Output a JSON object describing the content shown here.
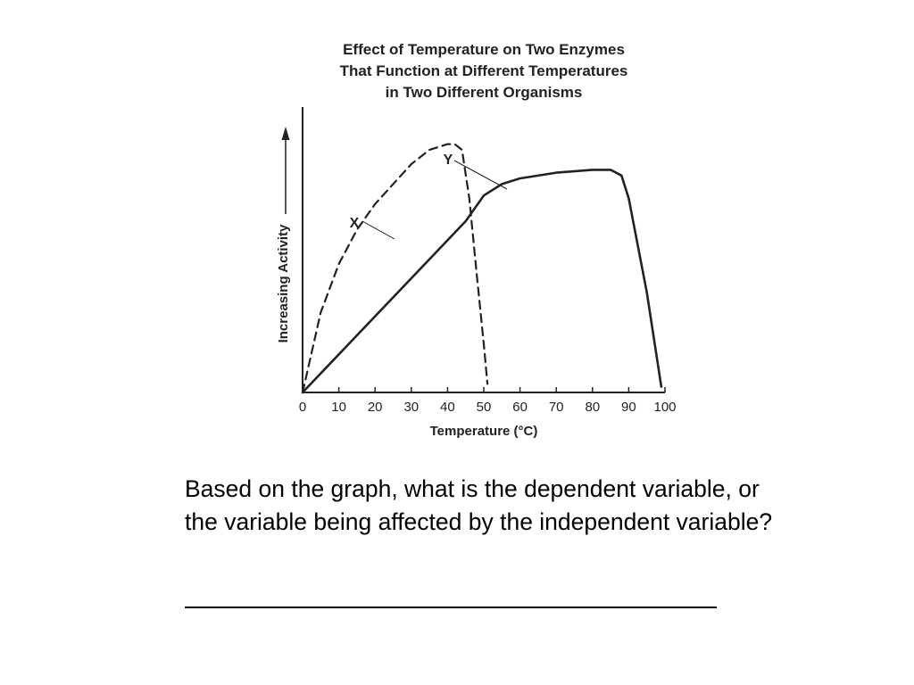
{
  "chart_data": {
    "type": "line",
    "title_lines": [
      "Effect of Temperature on Two Enzymes",
      "That Function at Different Temperatures",
      "in Two Different Organisms"
    ],
    "xlabel": "Temperature (°C)",
    "ylabel": "Increasing Activity",
    "xlim": [
      0,
      100
    ],
    "ylim": [
      0,
      10
    ],
    "x_ticks": [
      "0",
      "10",
      "20",
      "30",
      "40",
      "50",
      "60",
      "70",
      "80",
      "90",
      "100"
    ],
    "grid": false,
    "y_arrow": true,
    "series": [
      {
        "name": "X",
        "style": "dashed",
        "points": [
          [
            0,
            0
          ],
          [
            5,
            2.8
          ],
          [
            10,
            4.5
          ],
          [
            15,
            5.7
          ],
          [
            20,
            6.6
          ],
          [
            25,
            7.3
          ],
          [
            30,
            8.0
          ],
          [
            35,
            8.5
          ],
          [
            40,
            8.7
          ],
          [
            42,
            8.7
          ],
          [
            44,
            8.5
          ],
          [
            46,
            6.8
          ],
          [
            48,
            4.2
          ],
          [
            50,
            1.7
          ],
          [
            51,
            0.3
          ]
        ]
      },
      {
        "name": "Y",
        "style": "solid",
        "points": [
          [
            0,
            0
          ],
          [
            45,
            6.0
          ],
          [
            50,
            6.9
          ],
          [
            55,
            7.3
          ],
          [
            60,
            7.5
          ],
          [
            70,
            7.7
          ],
          [
            80,
            7.8
          ],
          [
            85,
            7.8
          ],
          [
            88,
            7.6
          ],
          [
            90,
            6.8
          ],
          [
            95,
            3.5
          ],
          [
            99,
            0.2
          ]
        ]
      }
    ]
  },
  "question": {
    "text": "Based on the graph, what is the dependent variable, or the variable being affected by the independent variable?"
  },
  "colors": {
    "ink": "#222222",
    "background": "#ffffff"
  }
}
